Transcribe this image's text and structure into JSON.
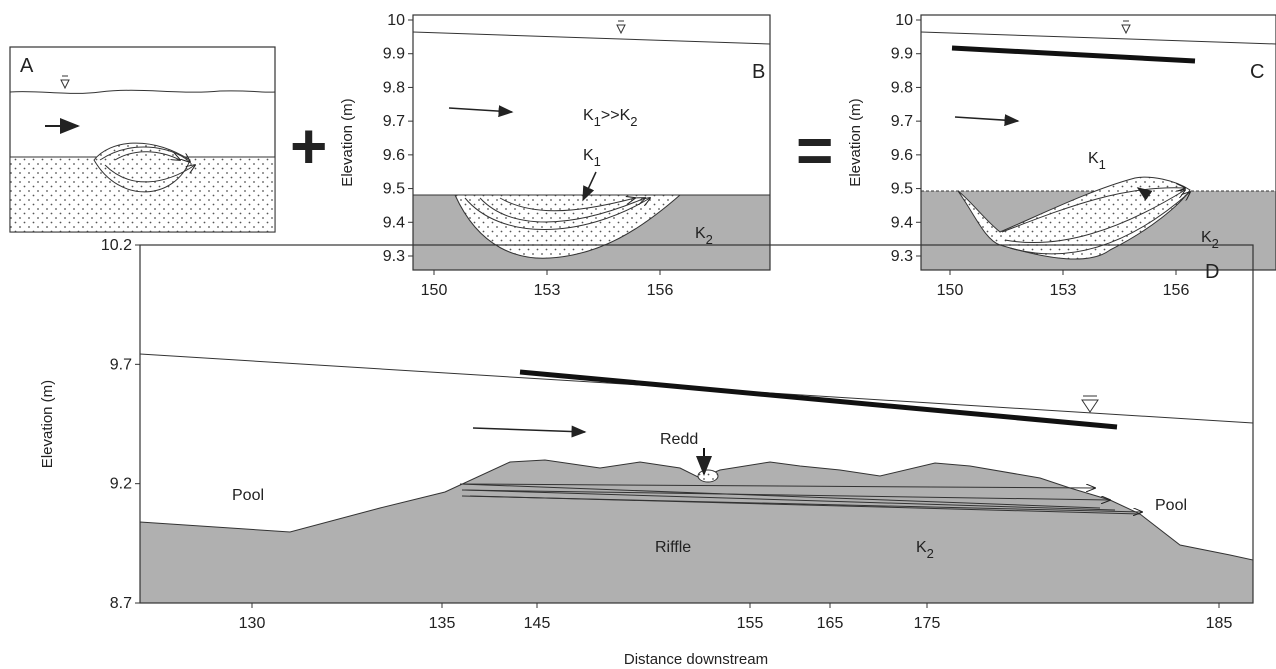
{
  "panel_a": {
    "label": "A"
  },
  "plus": "+",
  "equals": "=",
  "panel_b": {
    "label": "B",
    "y_axis_label": "Elevation (m)",
    "yticks": [
      10,
      9.9,
      9.8,
      9.7,
      9.6,
      9.5,
      9.4,
      9.3
    ],
    "xticks": [
      150,
      153,
      156
    ],
    "k_ratio": [
      "K",
      "1",
      ">>K",
      "2"
    ],
    "k1": [
      "K",
      "1"
    ],
    "k2": [
      "K",
      "2"
    ]
  },
  "panel_c": {
    "label": "C",
    "y_axis_label": "Elevation (m)",
    "yticks": [
      10,
      9.9,
      9.8,
      9.7,
      9.6,
      9.5,
      9.4,
      9.3
    ],
    "xticks": [
      150,
      153,
      156
    ],
    "k1": [
      "K",
      "1"
    ],
    "k2": [
      "K",
      "2"
    ]
  },
  "panel_d": {
    "label": "D",
    "y_axis_label": "Elevation (m)",
    "x_axis_label": "Distance downstream",
    "yticks": [
      10.2,
      9.7,
      9.2,
      8.7
    ],
    "xticks": [
      130,
      135,
      145,
      155,
      165,
      175,
      185
    ],
    "pool_left": "Pool",
    "pool_right": "Pool",
    "riffle": "Riffle",
    "redd": "Redd",
    "k2": [
      "K",
      "2"
    ]
  }
}
